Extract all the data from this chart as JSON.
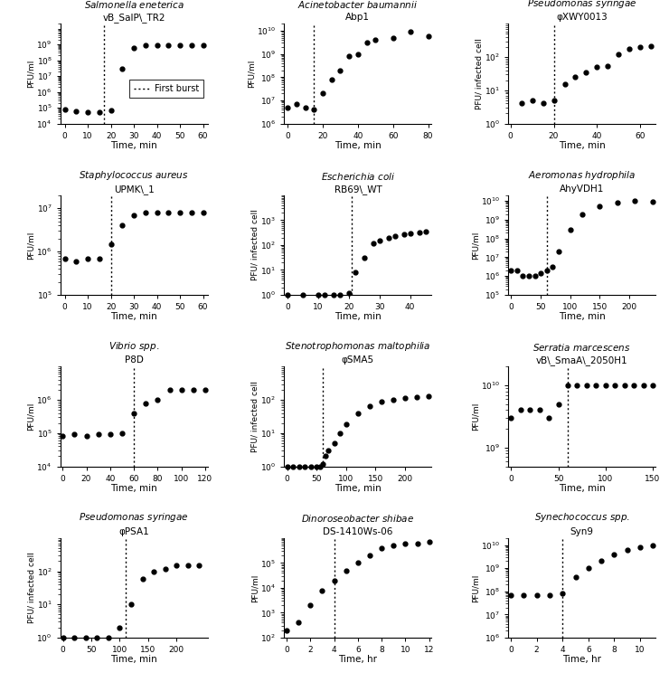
{
  "panels": [
    {
      "row": 0,
      "col": 0,
      "title_line1": "Salmonella eneterica",
      "title_line2": "vB_SalP\\_TR2",
      "xlabel": "Time, min",
      "ylabel": "PFU/ml",
      "xdata": [
        0,
        5,
        10,
        15,
        20,
        25,
        30,
        35,
        40,
        45,
        50,
        55,
        60
      ],
      "ydata": [
        80000.0,
        60000.0,
        50000.0,
        50000.0,
        70000.0,
        30000000.0,
        600000000.0,
        900000000.0,
        900000000.0,
        900000000.0,
        900000000.0,
        900000000.0,
        900000000.0
      ],
      "ylim_log": [
        10000.0,
        20000000000.0
      ],
      "yticks": [
        10000.0,
        100000.0,
        1000000.0,
        10000000.0,
        100000000.0,
        1000000000.0
      ],
      "xlim": [
        -2,
        62
      ],
      "xticks": [
        0,
        10,
        20,
        30,
        40,
        50,
        60
      ],
      "vline": 17,
      "legend": true
    },
    {
      "row": 0,
      "col": 1,
      "title_line1": "Acinetobacter baumannii",
      "title_line2": "Abp1",
      "xlabel": "Time, min",
      "ylabel": "PFU/ml",
      "xdata": [
        0,
        5,
        10,
        15,
        20,
        25,
        30,
        35,
        40,
        45,
        50,
        60,
        70,
        80
      ],
      "ydata": [
        5000000.0,
        7000000.0,
        5000000.0,
        4000000.0,
        20000000.0,
        80000000.0,
        200000000.0,
        800000000.0,
        1000000000.0,
        3000000000.0,
        4000000000.0,
        5000000000.0,
        9000000000.0,
        6000000000.0
      ],
      "ylim_log": [
        1000000.0,
        20000000000.0
      ],
      "yticks": [
        1000000.0,
        10000000.0,
        100000000.0,
        1000000000.0,
        10000000000.0
      ],
      "xlim": [
        -2,
        82
      ],
      "xticks": [
        0,
        20,
        40,
        60,
        80
      ],
      "vline": 15,
      "legend": false
    },
    {
      "row": 0,
      "col": 2,
      "title_line1": "Pseudomonas syringae",
      "title_line2": "φXWY0013",
      "xlabel": "Time, min",
      "ylabel": "PFU/ infected cell",
      "xdata": [
        5,
        10,
        15,
        20,
        25,
        30,
        35,
        40,
        45,
        50,
        55,
        60,
        65
      ],
      "ydata": [
        4,
        5,
        4,
        5,
        15,
        25,
        35,
        50,
        55,
        120,
        180,
        200,
        220
      ],
      "ylim_log": [
        1,
        1000.0
      ],
      "yticks": [
        1,
        10,
        100
      ],
      "xlim": [
        -1,
        67
      ],
      "xticks": [
        0,
        20,
        40,
        60
      ],
      "vline": 20,
      "legend": false
    },
    {
      "row": 1,
      "col": 0,
      "title_line1": "Staphylococcus aureus",
      "title_line2": "UPMK\\_1",
      "xlabel": "Time, min",
      "ylabel": "PFU/ml",
      "xdata": [
        0,
        5,
        10,
        15,
        20,
        25,
        30,
        35,
        40,
        45,
        50,
        55,
        60
      ],
      "ydata": [
        700000.0,
        600000.0,
        700000.0,
        700000.0,
        1500000.0,
        4000000.0,
        7000000.0,
        8000000.0,
        8000000.0,
        8000000.0,
        8000000.0,
        8000000.0,
        8000000.0
      ],
      "ylim_log": [
        100000.0,
        20000000.0
      ],
      "yticks": [
        100000.0,
        1000000.0,
        10000000.0
      ],
      "xlim": [
        -2,
        62
      ],
      "xticks": [
        0,
        10,
        20,
        30,
        40,
        50,
        60
      ],
      "vline": 20,
      "legend": false
    },
    {
      "row": 1,
      "col": 1,
      "title_line1": "Escherichia coli",
      "title_line2": "RB69\\_WT",
      "xlabel": "Time, min",
      "ylabel": "PFU/ infected cell",
      "xdata": [
        0,
        5,
        10,
        12,
        15,
        17,
        20,
        22,
        25,
        28,
        30,
        33,
        35,
        38,
        40,
        43,
        45
      ],
      "ydata": [
        1,
        1,
        1,
        1,
        1,
        1,
        1.2,
        8,
        30,
        120,
        150,
        200,
        230,
        270,
        300,
        330,
        350
      ],
      "ylim_log": [
        1,
        10000.0
      ],
      "yticks": [
        1,
        10,
        100,
        1000
      ],
      "xlim": [
        -1,
        47
      ],
      "xticks": [
        0,
        10,
        20,
        30,
        40
      ],
      "vline": 21,
      "legend": false
    },
    {
      "row": 1,
      "col": 2,
      "title_line1": "Aeromonas hydrophila",
      "title_line2": "AhyVDH1",
      "xlabel": "Time, min",
      "ylabel": "PFU/ml",
      "xdata": [
        0,
        10,
        20,
        30,
        40,
        50,
        60,
        70,
        80,
        100,
        120,
        150,
        180,
        210,
        240
      ],
      "ydata": [
        2000000.0,
        2000000.0,
        1000000.0,
        1000000.0,
        1000000.0,
        1500000.0,
        2000000.0,
        3000000.0,
        20000000.0,
        300000000.0,
        2000000000.0,
        5000000000.0,
        8000000000.0,
        10000000000.0,
        9000000000.0
      ],
      "ylim_log": [
        100000.0,
        20000000000.0
      ],
      "yticks": [
        100000.0,
        1000000.0,
        10000000.0,
        100000000.0,
        1000000000.0,
        10000000000.0
      ],
      "xlim": [
        -5,
        245
      ],
      "xticks": [
        0,
        50,
        100,
        150,
        200
      ],
      "vline": 60,
      "legend": false
    },
    {
      "row": 2,
      "col": 0,
      "title_line1": "Vibrio spp.",
      "title_line2": "P8D",
      "xlabel": "Time, min",
      "ylabel": "PFU/ml",
      "xdata": [
        0,
        10,
        20,
        30,
        40,
        50,
        60,
        70,
        80,
        90,
        100,
        110,
        120
      ],
      "ydata": [
        80000.0,
        90000.0,
        80000.0,
        90000.0,
        90000.0,
        100000.0,
        400000.0,
        800000.0,
        1000000.0,
        2000000.0,
        2000000.0,
        2000000.0,
        2000000.0
      ],
      "ylim_log": [
        10000.0,
        10000000.0
      ],
      "yticks": [
        10000.0,
        100000.0,
        1000000.0
      ],
      "xlim": [
        -2,
        122
      ],
      "xticks": [
        0,
        20,
        40,
        60,
        80,
        100,
        120
      ],
      "vline": 60,
      "legend": false
    },
    {
      "row": 2,
      "col": 1,
      "title_line1": "Stenotrophomonas maltophilia",
      "title_line2": "φSMA5",
      "xlabel": "Time, min",
      "ylabel": "PFU/ infected cell",
      "xdata": [
        0,
        10,
        20,
        30,
        40,
        50,
        55,
        60,
        65,
        70,
        80,
        90,
        100,
        120,
        140,
        160,
        180,
        200,
        220,
        240
      ],
      "ydata": [
        1,
        1,
        1,
        1,
        1,
        1,
        1,
        1.2,
        2,
        3,
        5,
        10,
        18,
        40,
        65,
        90,
        100,
        115,
        125,
        130
      ],
      "ylim_log": [
        1,
        1000.0
      ],
      "yticks": [
        1,
        10,
        100
      ],
      "xlim": [
        -5,
        245
      ],
      "xticks": [
        0,
        50,
        100,
        150,
        200
      ],
      "vline": 60,
      "legend": false
    },
    {
      "row": 2,
      "col": 2,
      "title_line1": "Serratia marcescens",
      "title_line2": "vB\\_SmaA\\_2050H1",
      "xlabel": "Time, min",
      "ylabel": "PFU/ml",
      "xdata": [
        0,
        10,
        20,
        30,
        40,
        50,
        60,
        70,
        80,
        90,
        100,
        110,
        120,
        130,
        140,
        150
      ],
      "ydata": [
        3000000000.0,
        4000000000.0,
        4000000000.0,
        4000000000.0,
        3000000000.0,
        5000000000.0,
        10000000000.0,
        10000000000.0,
        10000000000.0,
        10000000000.0,
        10000000000.0,
        10000000000.0,
        10000000000.0,
        10000000000.0,
        10000000000.0,
        10000000000.0
      ],
      "ylim_log": [
        500000000.0,
        20000000000.0
      ],
      "yticks": [
        1000000000.0,
        10000000000.0
      ],
      "xlim": [
        -3,
        153
      ],
      "xticks": [
        0,
        50,
        100,
        150
      ],
      "vline": 60,
      "legend": false
    },
    {
      "row": 3,
      "col": 0,
      "title_line1": "Pseudomonas syringae",
      "title_line2": "φPSA1",
      "xlabel": "Time, min",
      "ylabel": "PFU/ infected cell",
      "xdata": [
        0,
        20,
        40,
        60,
        80,
        100,
        120,
        140,
        160,
        180,
        200,
        220,
        240
      ],
      "ydata": [
        1,
        1,
        1,
        1,
        1,
        2,
        10,
        60,
        100,
        120,
        150,
        150,
        150
      ],
      "ylim_log": [
        1,
        1000.0
      ],
      "yticks": [
        1,
        10,
        100
      ],
      "xlim": [
        -5,
        255
      ],
      "xticks": [
        0,
        50,
        100,
        150,
        200
      ],
      "vline": 110,
      "legend": false
    },
    {
      "row": 3,
      "col": 1,
      "title_line1": "Dinoroseobacter shibae",
      "title_line2": "DS-1410Ws-06",
      "xlabel": "Time, hr",
      "ylabel": "PFU/ml",
      "xdata": [
        0,
        1,
        2,
        3,
        4,
        5,
        6,
        7,
        8,
        9,
        10,
        11,
        12
      ],
      "ydata": [
        200.0,
        400.0,
        2000.0,
        8000.0,
        20000.0,
        50000.0,
        100000.0,
        200000.0,
        400000.0,
        500000.0,
        600000.0,
        600000.0,
        700000.0
      ],
      "ylim_log": [
        100.0,
        1000000.0
      ],
      "yticks": [
        100.0,
        1000.0,
        10000.0,
        100000.0
      ],
      "xlim": [
        -0.2,
        12.2
      ],
      "xticks": [
        0,
        2,
        4,
        6,
        8,
        10,
        12
      ],
      "vline": 4,
      "legend": false
    },
    {
      "row": 3,
      "col": 2,
      "title_line1": "Synechococcus spp.",
      "title_line2": "Syn9",
      "xlabel": "Time, hr",
      "ylabel": "PFU/ml",
      "xdata": [
        0,
        1,
        2,
        3,
        4,
        5,
        6,
        7,
        8,
        9,
        10,
        11
      ],
      "ydata": [
        70000000.0,
        70000000.0,
        70000000.0,
        70000000.0,
        80000000.0,
        400000000.0,
        1000000000.0,
        2000000000.0,
        4000000000.0,
        6000000000.0,
        8000000000.0,
        10000000000.0
      ],
      "ylim_log": [
        1000000.0,
        20000000000.0
      ],
      "yticks": [
        1000000.0,
        10000000.0,
        100000000.0,
        1000000000.0,
        10000000000.0
      ],
      "xlim": [
        -0.2,
        11.2
      ],
      "xticks": [
        0,
        2,
        4,
        6,
        8,
        10
      ],
      "vline": 4,
      "legend": false
    }
  ]
}
